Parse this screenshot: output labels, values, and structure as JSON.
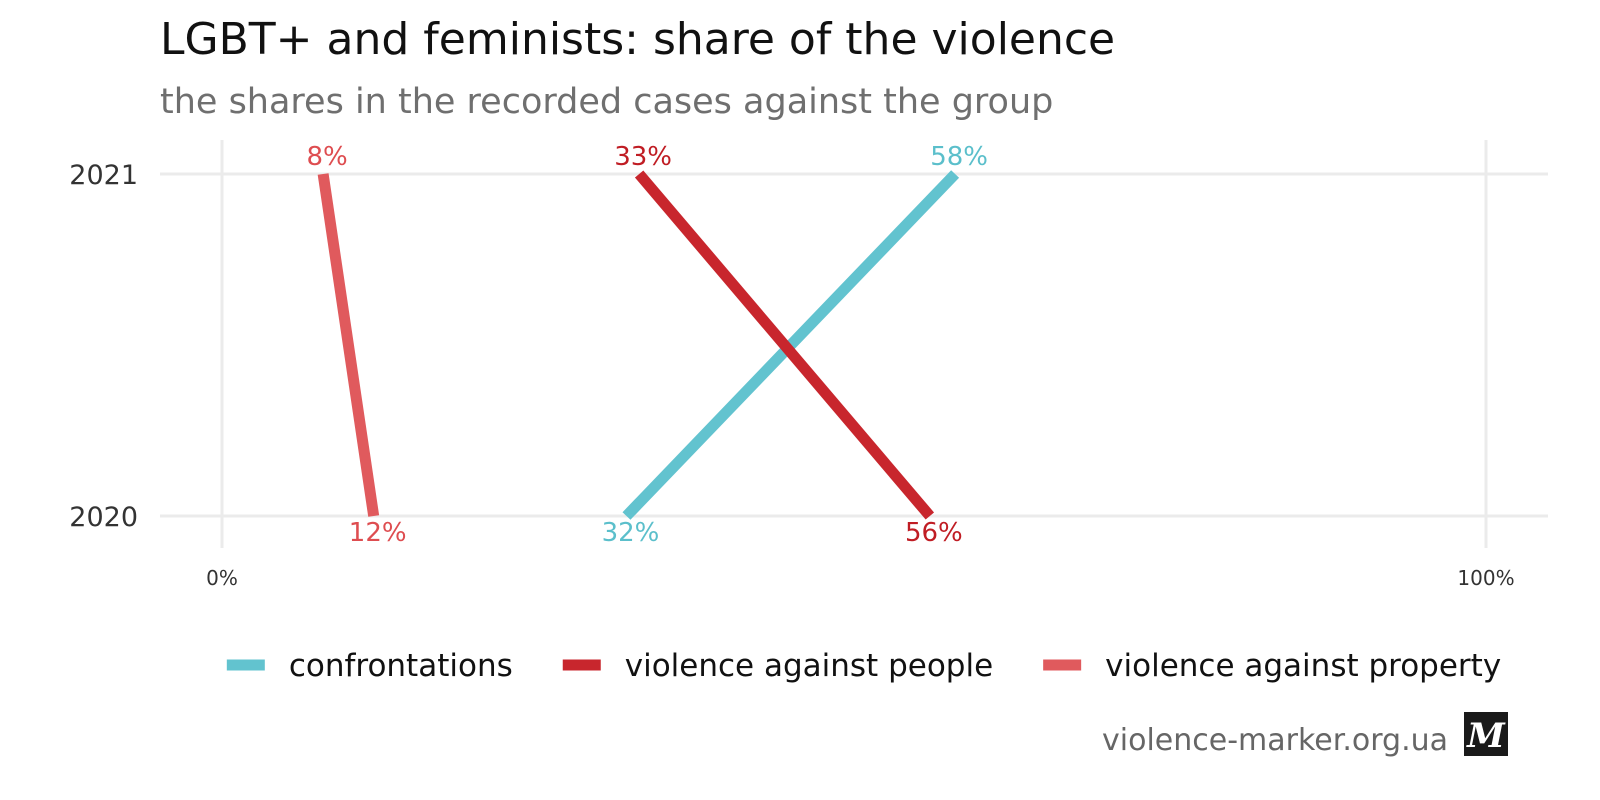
{
  "title": "LGBT+ and feminists: share of the violence",
  "subtitle": "the shares in the recorded cases against the group",
  "source": "violence-marker.org.ua",
  "logo_letter": "M",
  "chart_data": {
    "type": "line",
    "orientation": "horizontal-value-axis",
    "categories": [
      "2020",
      "2021"
    ],
    "xlim": [
      0,
      100
    ],
    "x_ticks": [
      {
        "value": 0,
        "label": "0%"
      },
      {
        "value": 100,
        "label": "100%"
      }
    ],
    "grid": true,
    "legend_position": "bottom",
    "series": [
      {
        "name": "confrontations",
        "color": "#62c3cf",
        "label_color": "#5bbfcb",
        "values": [
          32,
          58
        ],
        "labels": [
          "32%",
          "58%"
        ]
      },
      {
        "name": "violence against people",
        "color": "#c8262d",
        "label_color": "#c01d24",
        "values": [
          56,
          33
        ],
        "labels": [
          "56%",
          "33%"
        ]
      },
      {
        "name": "violence against property",
        "color": "#e05a5d",
        "label_color": "#de4d50",
        "values": [
          12,
          8
        ],
        "labels": [
          "12%",
          "8%"
        ]
      }
    ]
  }
}
